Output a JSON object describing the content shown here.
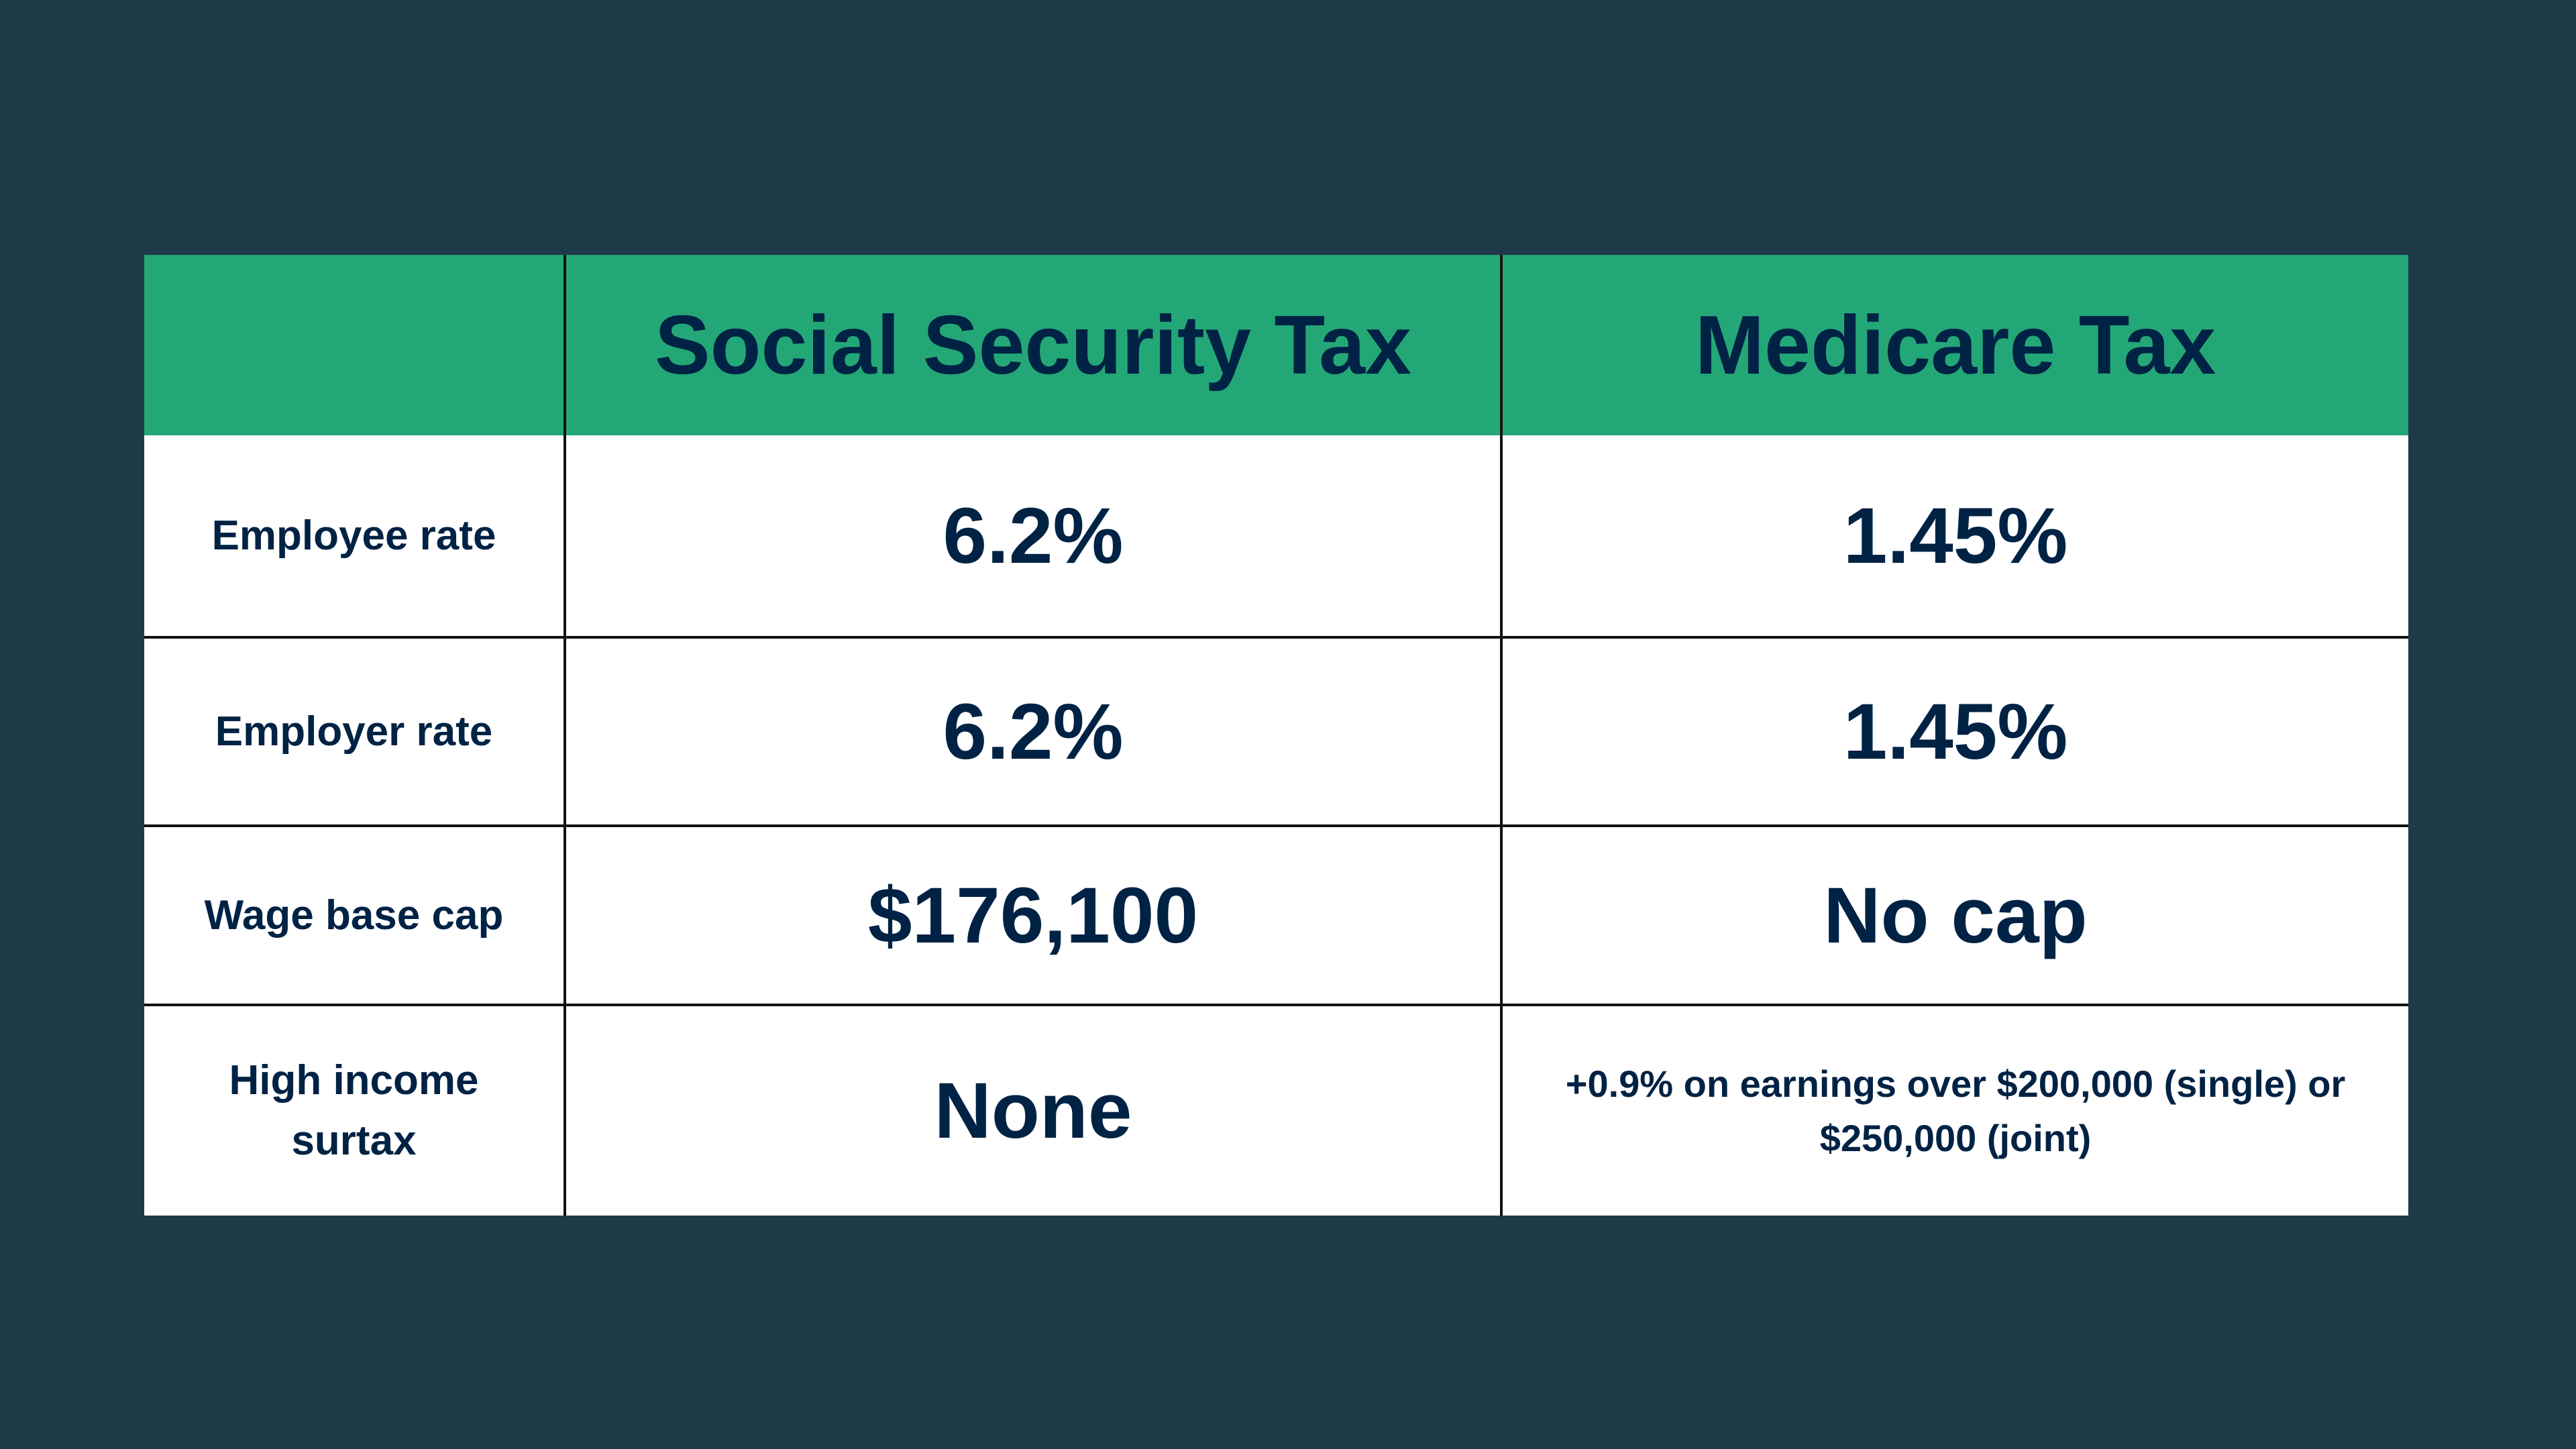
{
  "colors": {
    "background": "#1f3a47",
    "header": "#24a777",
    "text": "#002244"
  },
  "table": {
    "headers": [
      "",
      "Social Security Tax",
      "Medicare Tax"
    ],
    "rows": [
      {
        "label": "Employee rate",
        "social_security": "6.2%",
        "medicare": "1.45%"
      },
      {
        "label": "Employer rate",
        "social_security": "6.2%",
        "medicare": "1.45%"
      },
      {
        "label": "Wage base cap",
        "social_security": "$176,100",
        "medicare": "No cap"
      },
      {
        "label": "High income surtax",
        "social_security": "None",
        "medicare": "+0.9% on earnings over $200,000 (single) or $250,000 (joint)"
      }
    ]
  }
}
